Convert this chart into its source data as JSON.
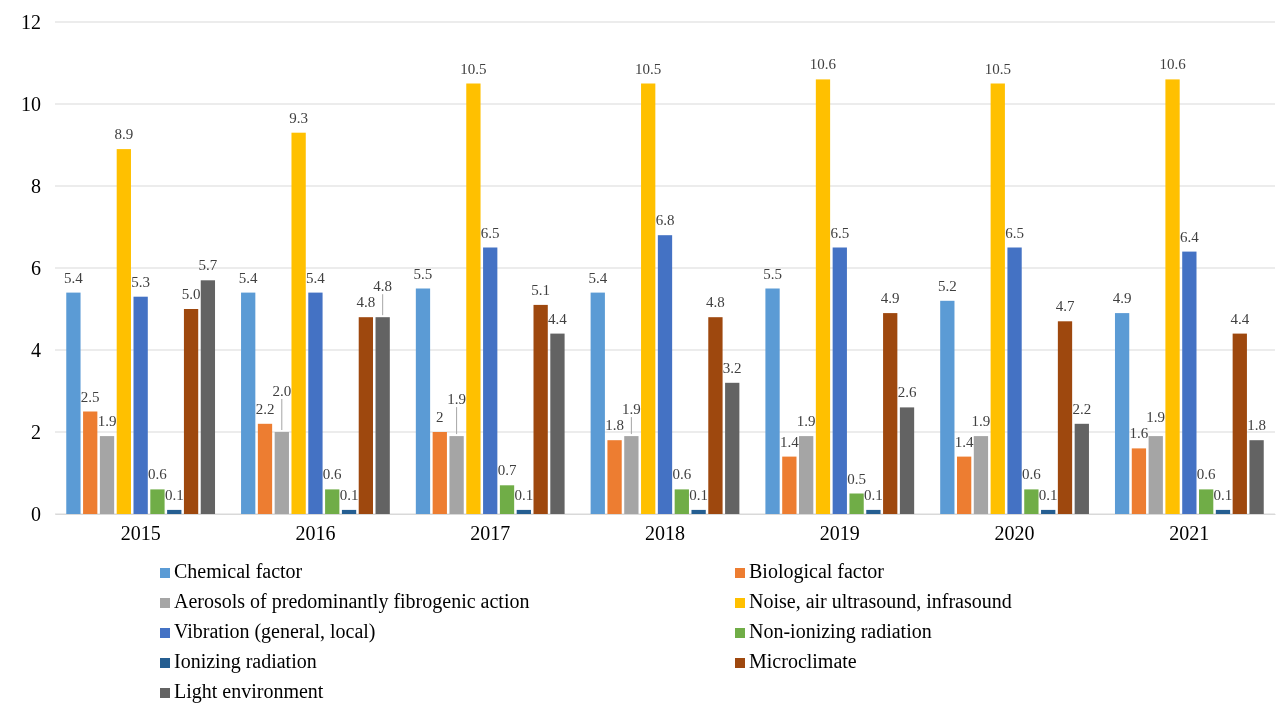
{
  "chart_data": {
    "type": "bar",
    "categories": [
      "2015",
      "2016",
      "2017",
      "2018",
      "2019",
      "2020",
      "2021"
    ],
    "ylim": [
      0,
      12
    ],
    "yticks": [
      0,
      2,
      4,
      6,
      8,
      10,
      12
    ],
    "grid": "y",
    "legend": "bottom",
    "series": [
      {
        "name": "Chemical factor",
        "color": "#5b9bd5",
        "values": [
          5.4,
          5.4,
          5.5,
          5.4,
          5.5,
          5.2,
          4.9
        ],
        "value_labels": [
          "5.4",
          "5.4",
          "5.5",
          "5.4",
          "5.5",
          "5.2",
          "4.9"
        ]
      },
      {
        "name": "Biological factor",
        "color": "#ed7d31",
        "values": [
          2.5,
          2.2,
          2,
          1.8,
          1.4,
          1.4,
          1.6
        ],
        "value_labels": [
          "2.5",
          "2.2",
          "2",
          "1.8",
          "1.4",
          "1.4",
          "1.6"
        ]
      },
      {
        "name": "Aerosols of predominantly fibrogenic action",
        "color": "#a5a5a5",
        "values": [
          1.9,
          2.0,
          1.9,
          1.9,
          1.9,
          1.9,
          1.9
        ],
        "value_labels": [
          "1.9",
          "2.0",
          "1.9",
          "1.9",
          "1.9",
          "1.9",
          "1.9"
        ]
      },
      {
        "name": "Noise, air ultrasound, infrasound",
        "color": "#ffc000",
        "values": [
          8.9,
          9.3,
          10.5,
          10.5,
          10.6,
          10.5,
          10.6
        ],
        "value_labels": [
          "8.9",
          "9.3",
          "10.5",
          "10.5",
          "10.6",
          "10.5",
          "10.6"
        ]
      },
      {
        "name": "Vibration (general, local)",
        "color": "#4472c4",
        "values": [
          5.3,
          5.4,
          6.5,
          6.8,
          6.5,
          6.5,
          6.4
        ],
        "value_labels": [
          "5.3",
          "5.4",
          "6.5",
          "6.8",
          "6.5",
          "6.5",
          "6.4"
        ]
      },
      {
        "name": "Non-ionizing radiation",
        "color": "#70ad47",
        "values": [
          0.6,
          0.6,
          0.7,
          0.6,
          0.5,
          0.6,
          0.6
        ],
        "value_labels": [
          "0.6",
          "0.6",
          "0.7",
          "0.6",
          "0.5",
          "0.6",
          "0.6"
        ]
      },
      {
        "name": "Ionizing radiation",
        "color": "#255e91",
        "values": [
          0.1,
          0.1,
          0.1,
          0.1,
          0.1,
          0.1,
          0.1
        ],
        "value_labels": [
          "0.1",
          "0.1",
          "0.1",
          "0.1",
          "0.1",
          "0.1",
          "0.1"
        ]
      },
      {
        "name": "Microclimate",
        "color": "#9e480e",
        "values": [
          5.0,
          4.8,
          5.1,
          4.8,
          4.9,
          4.7,
          4.4
        ],
        "value_labels": [
          "5.0",
          "4.8",
          "5.1",
          "4.8",
          "4.9",
          "4.7",
          "4.4"
        ]
      },
      {
        "name": "Light environment",
        "color": "#636363",
        "values": [
          5.7,
          4.8,
          4.4,
          3.2,
          2.6,
          2.2,
          1.8
        ],
        "value_labels": [
          "5.7",
          "4.8",
          "4.4",
          "3.2",
          "2.6",
          "2.2",
          "1.8"
        ]
      }
    ]
  }
}
